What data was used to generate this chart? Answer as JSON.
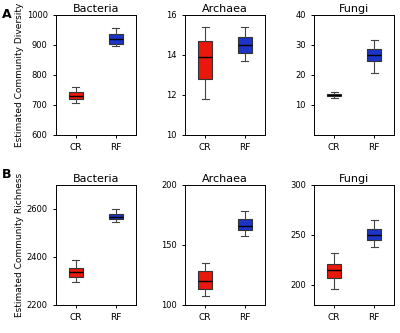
{
  "row_labels": [
    "A",
    "B"
  ],
  "col_titles": [
    "Bacteria",
    "Archaea",
    "Fungi"
  ],
  "row_ylabels": [
    "Estimated Community Diversity",
    "Estimated Community Richness"
  ],
  "x_labels": [
    "CR",
    "RF"
  ],
  "colors": [
    "#e8180a",
    "#1c35c8"
  ],
  "box_data": {
    "A": {
      "Bacteria": {
        "CR": {
          "whislo": 705,
          "q1": 718,
          "med": 730,
          "q3": 742,
          "whishi": 758
        },
        "RF": {
          "whislo": 895,
          "q1": 903,
          "med": 920,
          "q3": 937,
          "whishi": 958
        }
      },
      "Archaea": {
        "CR": {
          "whislo": 11.8,
          "q1": 12.8,
          "med": 13.9,
          "q3": 14.7,
          "whishi": 15.4
        },
        "RF": {
          "whislo": 13.7,
          "q1": 14.1,
          "med": 14.5,
          "q3": 14.9,
          "whishi": 15.4
        }
      },
      "Fungi": {
        "CR": {
          "whislo": 12.2,
          "q1": 12.8,
          "med": 13.2,
          "q3": 13.7,
          "whishi": 14.3
        },
        "RF": {
          "whislo": 20.5,
          "q1": 24.5,
          "med": 26.5,
          "q3": 28.5,
          "whishi": 31.5
        }
      }
    },
    "B": {
      "Bacteria": {
        "CR": {
          "whislo": 2295,
          "q1": 2315,
          "med": 2335,
          "q3": 2355,
          "whishi": 2385
        },
        "RF": {
          "whislo": 2545,
          "q1": 2558,
          "med": 2568,
          "q3": 2578,
          "whishi": 2598
        }
      },
      "Archaea": {
        "CR": {
          "whislo": 107,
          "q1": 113,
          "med": 120,
          "q3": 128,
          "whishi": 135
        },
        "RF": {
          "whislo": 157,
          "q1": 162,
          "med": 166,
          "q3": 172,
          "whishi": 178
        }
      },
      "Fungi": {
        "CR": {
          "whislo": 196,
          "q1": 207,
          "med": 215,
          "q3": 221,
          "whishi": 232
        },
        "RF": {
          "whislo": 238,
          "q1": 245,
          "med": 250,
          "q3": 256,
          "whishi": 265
        }
      }
    }
  },
  "ylims": {
    "A": {
      "Bacteria": [
        600,
        1000
      ],
      "Archaea": [
        10,
        16
      ],
      "Fungi": [
        0,
        40
      ]
    },
    "B": {
      "Bacteria": [
        2200,
        2700
      ],
      "Archaea": [
        100,
        200
      ],
      "Fungi": [
        180,
        300
      ]
    }
  },
  "yticks": {
    "A": {
      "Bacteria": [
        600,
        700,
        800,
        900,
        1000
      ],
      "Archaea": [
        10,
        12,
        14,
        16
      ],
      "Fungi": [
        10,
        20,
        30,
        40
      ]
    },
    "B": {
      "Bacteria": [
        2200,
        2400,
        2600
      ],
      "Archaea": [
        100,
        150,
        200
      ],
      "Fungi": [
        200,
        250,
        300
      ]
    }
  }
}
